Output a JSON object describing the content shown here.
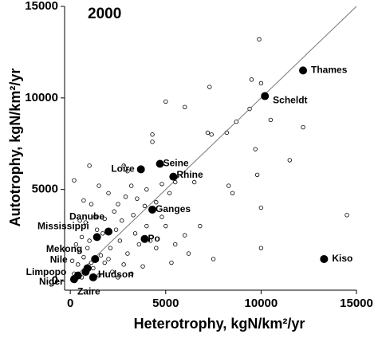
{
  "chart_data": {
    "type": "scatter",
    "title": "2000",
    "x_label": "Heterotrophy, kgN/km²/yr",
    "y_label": "Autotrophy, kgN/km²/yr",
    "xlim": [
      -300,
      15000
    ],
    "ylim": [
      -500,
      15000
    ],
    "xticks": [
      0,
      5000,
      10000,
      15000
    ],
    "yticks": [
      0,
      5000,
      10000,
      15000
    ],
    "reference_line": [
      0,
      15000
    ],
    "series": [
      {
        "color": "#ffffff",
        "x": [
          9900,
          9500,
          10000,
          5000,
          7300,
          14500,
          12200,
          10500,
          9400,
          8700,
          7400,
          7200,
          8200,
          9700,
          9800,
          11500,
          10000,
          10000,
          8500,
          7500,
          5300,
          6800,
          6000,
          6500,
          8300,
          4300,
          4300,
          6000,
          5500,
          4800,
          3000,
          2800,
          3200,
          3500,
          4000,
          2500,
          2000,
          1500,
          1000,
          700,
          200,
          4500,
          5000,
          4000,
          3300,
          2700,
          2300,
          1800,
          1300,
          800,
          500,
          3600,
          4500,
          3000,
          2600,
          2100,
          1700,
          1000,
          600,
          300,
          3800,
          2800,
          2200,
          1600,
          1200,
          700,
          400,
          100,
          1500,
          2500,
          600,
          200,
          900,
          1800,
          2400,
          3400,
          4200,
          5500,
          6200,
          4800,
          5200,
          3900,
          2900,
          1100,
          1400,
          500,
          2000,
          3200,
          1100,
          800
        ],
        "y": [
          13200,
          11000,
          10800,
          9800,
          10600,
          3600,
          8400,
          8800,
          9400,
          8700,
          8000,
          8100,
          8100,
          7200,
          5800,
          6600,
          4000,
          1800,
          4800,
          1200,
          1000,
          3000,
          2500,
          5400,
          5200,
          8000,
          7600,
          9500,
          5400,
          5300,
          6000,
          6300,
          5200,
          4500,
          5000,
          4200,
          4800,
          5200,
          6300,
          4400,
          5500,
          4300,
          3000,
          3000,
          3600,
          3300,
          3800,
          3400,
          3500,
          3200,
          3300,
          2000,
          1800,
          1500,
          2200,
          1800,
          2600,
          2200,
          2400,
          2000,
          800,
          900,
          500,
          1400,
          700,
          1300,
          900,
          1100,
          300,
          200,
          200,
          400,
          1800,
          1000,
          2800,
          2600,
          2200,
          2000,
          1500,
          3500,
          4800,
          4100,
          4600,
          4200,
          2800,
          1600,
          1200,
          400,
          1000,
          600
        ]
      },
      {
        "color": "#000000",
        "x": [
          12200,
          10200,
          13300,
          3700,
          4700,
          5400,
          4300,
          2000,
          1400,
          3900,
          1300,
          900,
          800,
          400,
          200,
          1200
        ],
        "y": [
          11500,
          10100,
          1200,
          6100,
          6400,
          5700,
          3900,
          2700,
          2400,
          2300,
          1200,
          700,
          500,
          300,
          100,
          200
        ],
        "labels": [
          "Thames",
          "Scheldt",
          "Kiso",
          "Loire",
          "Seine",
          "Rhine",
          "Ganges",
          "Danube",
          "Mississippi",
          "Po",
          "Mekong",
          "Nile",
          "Limpopo",
          "Niger",
          "Zaire",
          "Hudson"
        ]
      }
    ]
  }
}
